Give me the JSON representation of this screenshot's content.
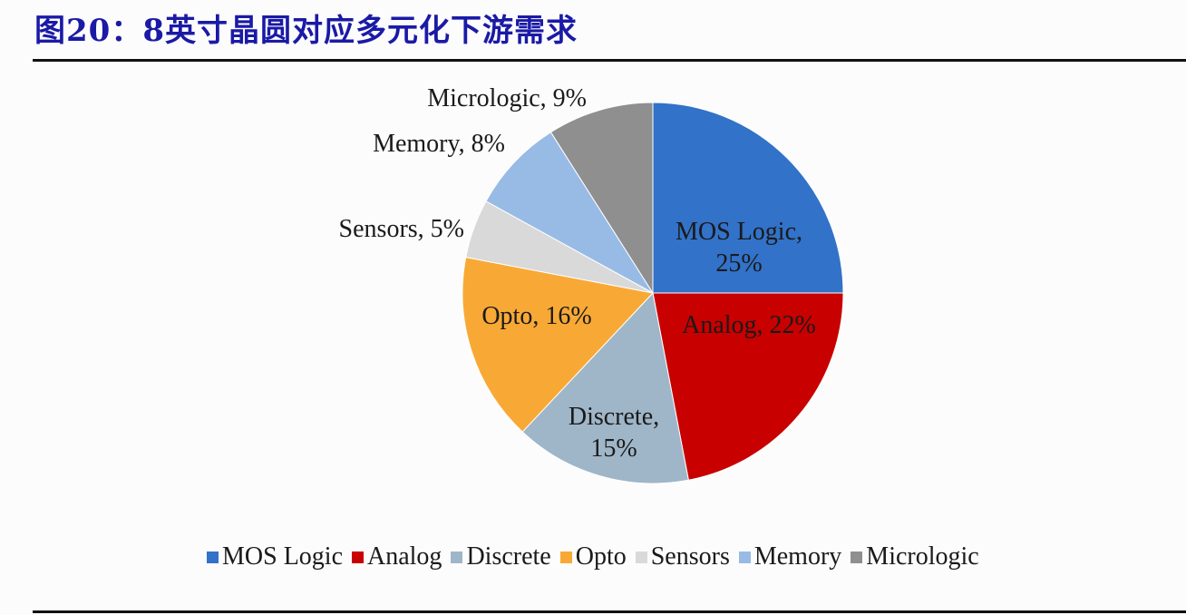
{
  "title": "图20：8英寸晶圆对应多元化下游需求",
  "chart_data": {
    "type": "pie",
    "title": "图20：8英寸晶圆对应多元化下游需求",
    "start_angle": "12 o'clock, clockwise",
    "legend_position": "bottom",
    "categories": [
      "MOS Logic",
      "Analog",
      "Discrete",
      "Opto",
      "Sensors",
      "Memory",
      "Micrologic"
    ],
    "values": [
      25,
      22,
      15,
      16,
      5,
      8,
      9
    ],
    "unit": "%",
    "colors": [
      "#3272c8",
      "#c80000",
      "#9fb6c8",
      "#f8a935",
      "#d9d9d9",
      "#98bbe6",
      "#8f8f8f"
    ],
    "data_labels": [
      "MOS Logic, 25%",
      "Analog, 22%",
      "Discrete, 15%",
      "Opto, 16%",
      "Sensors, 5%",
      "Memory, 8%",
      "Micrologic, 9%"
    ]
  },
  "labels": {
    "mos_1": "MOS Logic,",
    "mos_2": "25%",
    "analog": "Analog, 22%",
    "discrete_1": "Discrete,",
    "discrete_2": "15%",
    "opto": "Opto, 16%",
    "sensors": "Sensors, 5%",
    "memory": "Memory, 8%",
    "micrologic": "Micrologic, 9%"
  },
  "legend": [
    {
      "label": "MOS Logic",
      "color": "#3272c8"
    },
    {
      "label": "Analog",
      "color": "#c80000"
    },
    {
      "label": "Discrete",
      "color": "#9fb6c8"
    },
    {
      "label": "Opto",
      "color": "#f8a935"
    },
    {
      "label": "Sensors",
      "color": "#d9d9d9"
    },
    {
      "label": "Memory",
      "color": "#98bbe6"
    },
    {
      "label": "Micrologic",
      "color": "#8f8f8f"
    }
  ]
}
